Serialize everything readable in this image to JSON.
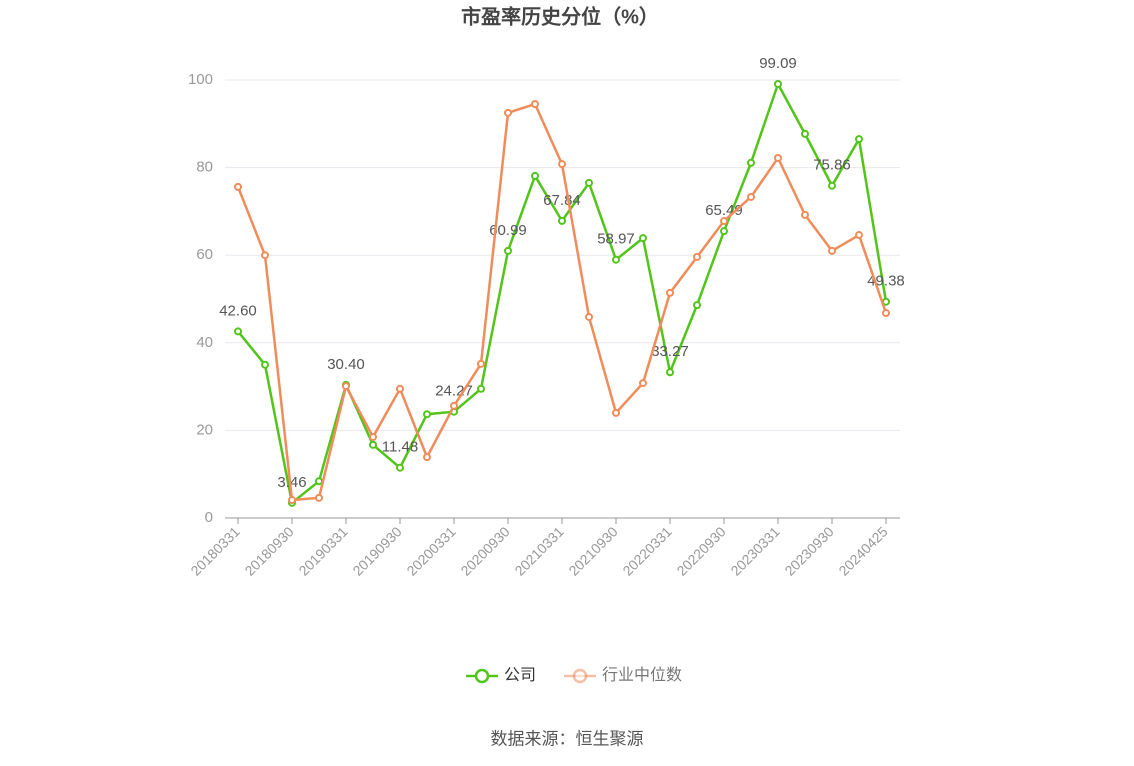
{
  "chart_data": {
    "type": "line",
    "title": "市盈率历史分位（%）",
    "categories": [
      "20180331",
      null,
      "20180930",
      null,
      "20190331",
      null,
      "20190930",
      null,
      "20200331",
      null,
      "20200930",
      null,
      "20210331",
      null,
      "20210930",
      null,
      "20220331",
      null,
      "20220930",
      null,
      "20230331",
      null,
      "20230930",
      null,
      "20240425"
    ],
    "series": [
      {
        "name": "公司",
        "color": "#52c41a",
        "values": [
          42.6,
          35.0,
          3.46,
          8.4,
          30.4,
          16.7,
          11.48,
          23.7,
          24.27,
          29.5,
          60.99,
          78.1,
          67.84,
          76.5,
          58.97,
          63.9,
          33.27,
          48.6,
          65.49,
          81.1,
          99.09,
          87.7,
          75.86,
          86.5,
          49.38
        ],
        "value_labels": [
          "42.60",
          null,
          "3.46",
          null,
          "30.40",
          null,
          "11.48",
          null,
          "24.27",
          null,
          "60.99",
          null,
          "67.84",
          null,
          "58.97",
          null,
          "33.27",
          null,
          "65.49",
          null,
          "99.09",
          null,
          "75.86",
          null,
          "49.38"
        ]
      },
      {
        "name": "行业中位数",
        "color": "#f08c5a",
        "values": [
          75.6,
          60.0,
          4.1,
          4.6,
          30.1,
          18.5,
          29.5,
          13.9,
          25.6,
          35.2,
          92.5,
          94.5,
          80.8,
          45.9,
          24.0,
          30.8,
          51.4,
          59.6,
          67.8,
          73.3,
          82.2,
          69.2,
          61.0,
          64.6,
          46.8
        ]
      }
    ],
    "ylim": [
      0,
      100
    ],
    "yticks": [
      0,
      20,
      40,
      60,
      80,
      100
    ],
    "grid": true,
    "legend": "bottom",
    "source": "数据来源：恒生聚源"
  }
}
